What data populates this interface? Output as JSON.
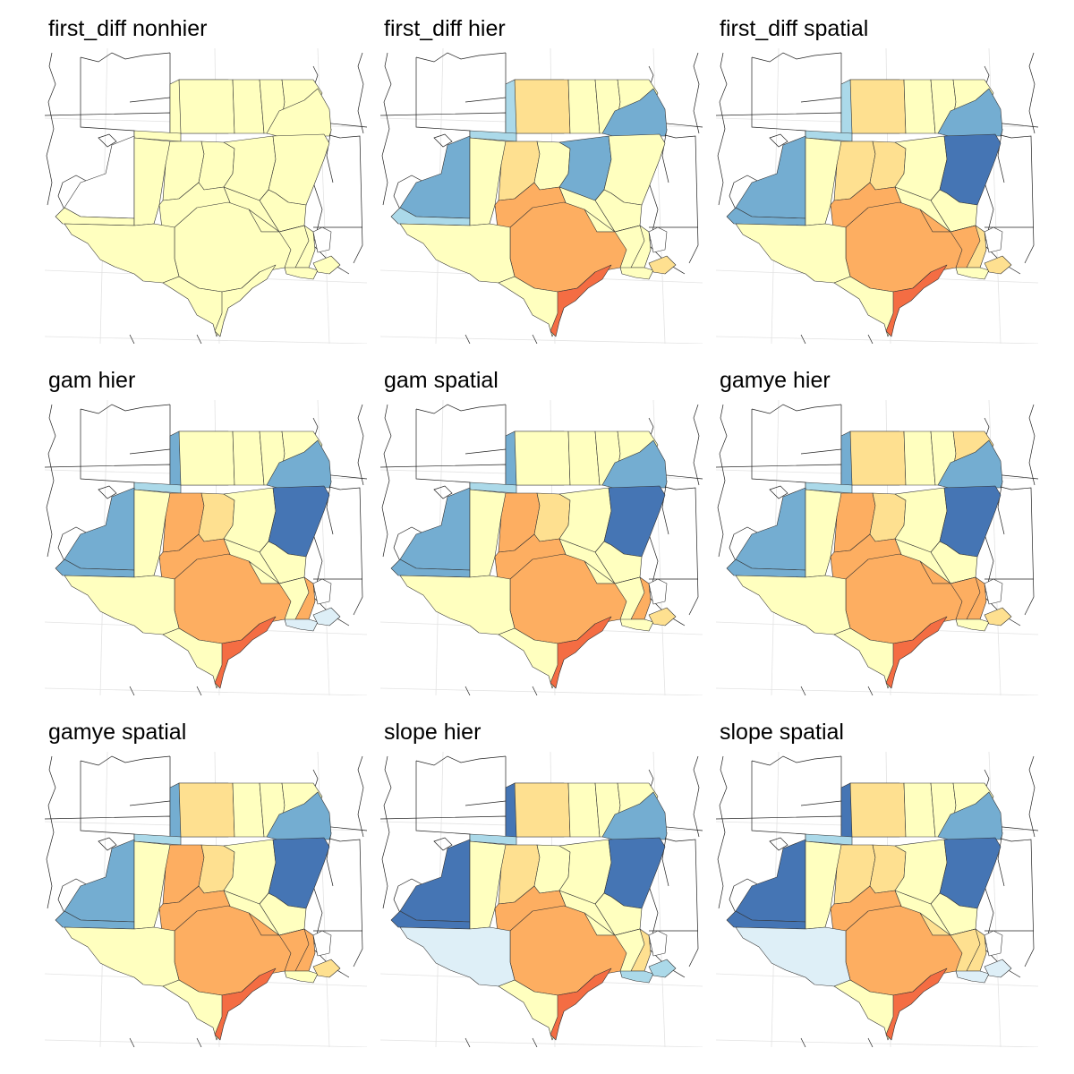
{
  "palette": {
    "none": "#ffffff",
    "ltblue": "#deeff7",
    "blue1": "#abd9e9",
    "blue2": "#74add1",
    "blue3": "#4575b4",
    "yellow": "#ffffbf",
    "yel2": "#fee090",
    "orange1": "#fdae61",
    "orange2": "#f46d43"
  },
  "panels": [
    {
      "title": "first_diff nonhier",
      "fills": {
        "MT": "none",
        "NE_W": "none",
        "NE_E": "yellow",
        "CO": "yellow",
        "ND": "yellow",
        "MN": "yellow",
        "MN2": "yellow",
        "MN3": "yellow",
        "WI": "yellow",
        "IA": "yellow",
        "SD": "yellow",
        "KS_W": "yellow",
        "KS_E": "yellow",
        "KS_M": "yellow",
        "MO": "yellow",
        "OK": "yellow",
        "TX_W": "yellow",
        "TX_C": "yellow",
        "TX_E": "yellow",
        "TX_S": "yellow",
        "TX_COAST": "yellow",
        "AR": "yellow",
        "LA": "yellow",
        "IL": "yellow",
        "WI_E": "yellow",
        "LAK": "yellow",
        "MS": "none"
      }
    },
    {
      "title": "first_diff hier",
      "fills": {
        "MT": "none",
        "NE_W": "blue2",
        "NE_E": "blue1",
        "CO": "blue1",
        "ND": "yel2",
        "MN": "yellow",
        "MN2": "yellow",
        "MN3": "yellow",
        "WI": "blue2",
        "IA": "yellow",
        "SD": "blue1",
        "KS_W": "yellow",
        "KS_E": "yel2",
        "KS_M": "yellow",
        "MO": "blue2",
        "OK": "orange1",
        "TX_W": "yellow",
        "TX_C": "orange1",
        "TX_E": "yellow",
        "TX_S": "yellow",
        "TX_COAST": "orange2",
        "AR": "yellow",
        "LA": "yellow",
        "IL": "yellow",
        "WI_E": "yellow",
        "LAK": "yel2",
        "MS": "none"
      }
    },
    {
      "title": "first_diff spatial",
      "fills": {
        "MT": "none",
        "NE_W": "blue2",
        "NE_E": "blue1",
        "CO": "blue2",
        "ND": "yel2",
        "MN": "yellow",
        "MN2": "yellow",
        "MN3": "yellow",
        "WI": "blue2",
        "IA": "blue3",
        "SD": "blue1",
        "KS_W": "yellow",
        "KS_E": "yel2",
        "KS_M": "yel2",
        "MO": "yellow",
        "OK": "orange1",
        "TX_W": "yellow",
        "TX_C": "orange1",
        "TX_E": "yel2",
        "TX_S": "yellow",
        "TX_COAST": "orange2",
        "AR": "orange1",
        "LA": "yellow",
        "IL": "yellow",
        "WI_E": "yellow",
        "LAK": "yel2",
        "MS": "none"
      }
    },
    {
      "title": "gam hier",
      "fills": {
        "MT": "none",
        "NE_W": "blue2",
        "NE_E": "blue1",
        "CO": "blue2",
        "ND": "yellow",
        "MN": "yellow",
        "MN2": "yellow",
        "MN3": "yellow",
        "WI": "blue2",
        "IA": "blue3",
        "SD": "blue2",
        "KS_W": "yellow",
        "KS_E": "orange1",
        "KS_M": "yel2",
        "MO": "yellow",
        "OK": "orange1",
        "TX_W": "yellow",
        "TX_C": "orange1",
        "TX_E": "orange1",
        "TX_S": "yellow",
        "TX_COAST": "orange2",
        "AR": "yellow",
        "LA": "ltblue",
        "IL": "yellow",
        "WI_E": "yellow",
        "LAK": "ltblue",
        "MS": "none"
      }
    },
    {
      "title": "gam spatial",
      "fills": {
        "MT": "none",
        "NE_W": "blue2",
        "NE_E": "blue1",
        "CO": "blue2",
        "ND": "yellow",
        "MN": "yellow",
        "MN2": "yellow",
        "MN3": "yellow",
        "WI": "blue2",
        "IA": "blue3",
        "SD": "blue2",
        "KS_W": "yellow",
        "KS_E": "orange1",
        "KS_M": "yel2",
        "MO": "yellow",
        "OK": "orange1",
        "TX_W": "yellow",
        "TX_C": "orange1",
        "TX_E": "orange1",
        "TX_S": "yellow",
        "TX_COAST": "orange2",
        "AR": "yellow",
        "LA": "yellow",
        "IL": "yellow",
        "WI_E": "yellow",
        "LAK": "yel2",
        "MS": "none"
      }
    },
    {
      "title": "gamye hier",
      "fills": {
        "MT": "none",
        "NE_W": "blue2",
        "NE_E": "blue1",
        "CO": "blue2",
        "ND": "yel2",
        "MN": "yellow",
        "MN2": "yellow",
        "MN3": "yel2",
        "WI": "blue2",
        "IA": "blue3",
        "SD": "blue2",
        "KS_W": "yellow",
        "KS_E": "orange1",
        "KS_M": "yel2",
        "MO": "yellow",
        "OK": "orange1",
        "TX_W": "yellow",
        "TX_C": "orange1",
        "TX_E": "orange1",
        "TX_S": "yellow",
        "TX_COAST": "orange2",
        "AR": "orange1",
        "LA": "yellow",
        "IL": "yellow",
        "WI_E": "yellow",
        "LAK": "yel2",
        "MS": "none"
      }
    },
    {
      "title": "gamye spatial",
      "fills": {
        "MT": "none",
        "NE_W": "blue2",
        "NE_E": "blue1",
        "CO": "blue2",
        "ND": "yel2",
        "MN": "yellow",
        "MN2": "yellow",
        "MN3": "yellow",
        "WI": "blue2",
        "IA": "blue3",
        "SD": "blue2",
        "KS_W": "yellow",
        "KS_E": "orange1",
        "KS_M": "yel2",
        "MO": "yellow",
        "OK": "orange1",
        "TX_W": "yellow",
        "TX_C": "orange1",
        "TX_E": "orange1",
        "TX_S": "yellow",
        "TX_COAST": "orange2",
        "AR": "orange1",
        "LA": "yellow",
        "IL": "yellow",
        "WI_E": "yellow",
        "LAK": "yel2",
        "MS": "none"
      }
    },
    {
      "title": "slope hier",
      "fills": {
        "MT": "none",
        "NE_W": "blue3",
        "NE_E": "blue1",
        "CO": "blue3",
        "ND": "yel2",
        "MN": "yellow",
        "MN2": "yellow",
        "MN3": "yellow",
        "WI": "blue2",
        "IA": "blue3",
        "SD": "blue3",
        "KS_W": "yellow",
        "KS_E": "yel2",
        "KS_M": "yellow",
        "MO": "yellow",
        "OK": "orange1",
        "TX_W": "ltblue",
        "TX_C": "orange1",
        "TX_E": "yel2",
        "TX_S": "yellow",
        "TX_COAST": "orange2",
        "AR": "yellow",
        "LA": "blue1",
        "IL": "yellow",
        "WI_E": "yellow",
        "LAK": "blue1",
        "MS": "none"
      }
    },
    {
      "title": "slope spatial",
      "fills": {
        "MT": "none",
        "NE_W": "blue3",
        "NE_E": "blue1",
        "CO": "blue3",
        "ND": "yel2",
        "MN": "yellow",
        "MN2": "yellow",
        "MN3": "yellow",
        "WI": "blue2",
        "IA": "blue3",
        "SD": "blue3",
        "KS_W": "yellow",
        "KS_E": "yel2",
        "KS_M": "yel2",
        "MO": "yellow",
        "OK": "orange1",
        "TX_W": "ltblue",
        "TX_C": "orange1",
        "TX_E": "yel2",
        "TX_S": "yellow",
        "TX_COAST": "orange2",
        "AR": "yel2",
        "LA": "ltblue",
        "IL": "yellow",
        "WI_E": "yellow",
        "LAK": "ltblue",
        "MS": "none"
      }
    }
  ]
}
